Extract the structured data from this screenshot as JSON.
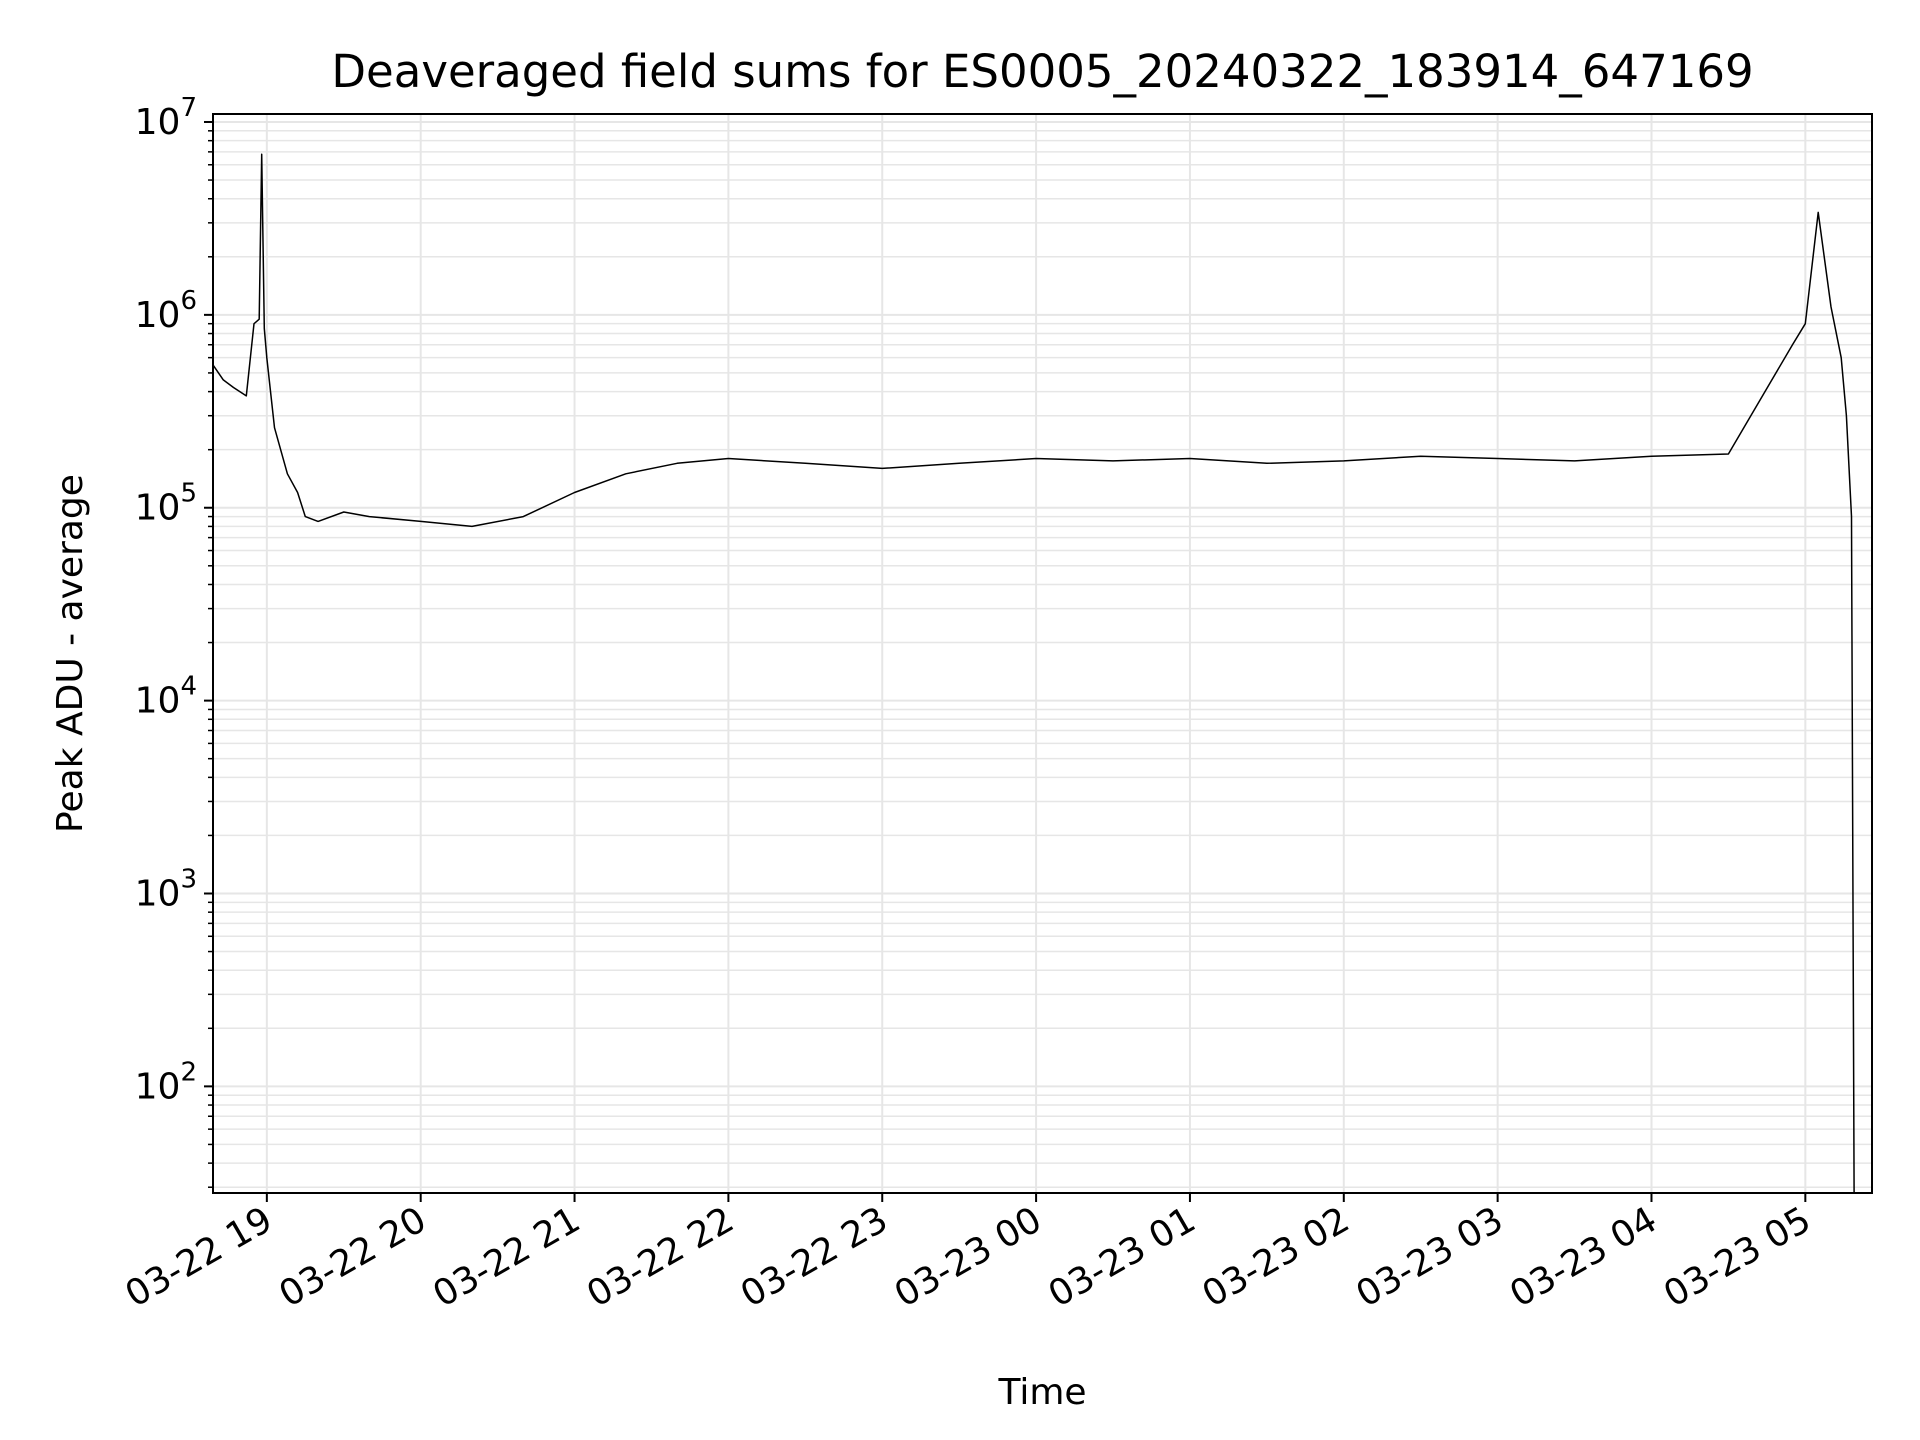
{
  "chart_data": {
    "type": "line",
    "title": "Deaveraged field sums for ES0005_20240322_183914_647169",
    "xlabel": "Time",
    "ylabel": "Peak ADU - average",
    "yscale": "log",
    "xlim": [
      "2024-03-22 18:39",
      "2024-03-23 05:26"
    ],
    "ylim": [
      28,
      11000000
    ],
    "grid": true,
    "x_ticks": [
      {
        "value": "2024-03-22 19:00",
        "label": "03-22 19"
      },
      {
        "value": "2024-03-22 20:00",
        "label": "03-22 20"
      },
      {
        "value": "2024-03-22 21:00",
        "label": "03-22 21"
      },
      {
        "value": "2024-03-22 22:00",
        "label": "03-22 22"
      },
      {
        "value": "2024-03-22 23:00",
        "label": "03-22 23"
      },
      {
        "value": "2024-03-23 00:00",
        "label": "03-23 00"
      },
      {
        "value": "2024-03-23 01:00",
        "label": "03-23 01"
      },
      {
        "value": "2024-03-23 02:00",
        "label": "03-23 02"
      },
      {
        "value": "2024-03-23 03:00",
        "label": "03-23 03"
      },
      {
        "value": "2024-03-23 04:00",
        "label": "03-23 04"
      },
      {
        "value": "2024-03-23 05:00",
        "label": "03-23 05"
      }
    ],
    "y_ticks": [
      {
        "value": 100,
        "base": "10",
        "exp": "2"
      },
      {
        "value": 1000,
        "base": "10",
        "exp": "3"
      },
      {
        "value": 10000,
        "base": "10",
        "exp": "4"
      },
      {
        "value": 100000,
        "base": "10",
        "exp": "5"
      },
      {
        "value": 1000000,
        "base": "10",
        "exp": "6"
      },
      {
        "value": 10000000,
        "base": "10",
        "exp": "7"
      }
    ],
    "series": [
      {
        "color": "#000000",
        "x": [
          "2024-03-22 18:39",
          "2024-03-22 18:43",
          "2024-03-22 18:47",
          "2024-03-22 18:52",
          "2024-03-22 18:55",
          "2024-03-22 18:57",
          "2024-03-22 18:58",
          "2024-03-22 18:59",
          "2024-03-22 19:00",
          "2024-03-22 19:03",
          "2024-03-22 19:08",
          "2024-03-22 19:12",
          "2024-03-22 19:15",
          "2024-03-22 19:20",
          "2024-03-22 19:30",
          "2024-03-22 19:40",
          "2024-03-22 20:00",
          "2024-03-22 20:20",
          "2024-03-22 20:40",
          "2024-03-22 21:00",
          "2024-03-22 21:20",
          "2024-03-22 21:40",
          "2024-03-22 22:00",
          "2024-03-22 22:30",
          "2024-03-22 23:00",
          "2024-03-22 23:30",
          "2024-03-23 00:00",
          "2024-03-23 00:30",
          "2024-03-23 01:00",
          "2024-03-23 01:30",
          "2024-03-23 02:00",
          "2024-03-23 02:30",
          "2024-03-23 03:00",
          "2024-03-23 03:30",
          "2024-03-23 04:00",
          "2024-03-23 04:30",
          "2024-03-23 04:55",
          "2024-03-23 05:00",
          "2024-03-23 05:05",
          "2024-03-23 05:10",
          "2024-03-23 05:14",
          "2024-03-23 05:16",
          "2024-03-23 05:18",
          "2024-03-23 05:19"
        ],
        "y": [
          550000,
          460000,
          420000,
          380000,
          900000,
          950000,
          6800000,
          850000,
          600000,
          260000,
          150000,
          120000,
          90000,
          85000,
          95000,
          90000,
          85000,
          80000,
          90000,
          120000,
          150000,
          170000,
          180000,
          170000,
          160000,
          170000,
          180000,
          175000,
          180000,
          170000,
          175000,
          185000,
          180000,
          175000,
          185000,
          190000,
          700000,
          900000,
          3400000,
          1100000,
          600000,
          300000,
          90000,
          28
        ]
      }
    ]
  }
}
